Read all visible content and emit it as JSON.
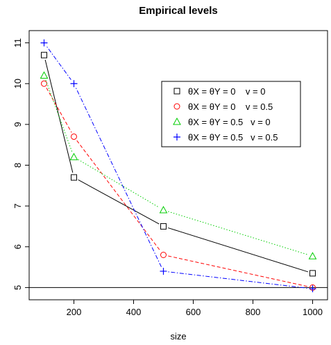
{
  "chart_data": {
    "type": "line",
    "title": "Empirical levels",
    "xlabel": "size",
    "ylabel": "",
    "x": [
      100,
      200,
      500,
      1000
    ],
    "xlim": [
      50,
      1050
    ],
    "ylim": [
      4.7,
      11.3
    ],
    "xticks": [
      200,
      400,
      600,
      800,
      1000
    ],
    "yticks": [
      5,
      6,
      7,
      8,
      9,
      10,
      11
    ],
    "reference_line_y": 5,
    "grid": false,
    "legend_position": "right",
    "series": [
      {
        "name": "θX = θY = 0    v = 0",
        "marker": "square",
        "line": "solid",
        "color": "#000000",
        "values": [
          10.7,
          7.7,
          6.5,
          5.35
        ]
      },
      {
        "name": "θX = θY = 0    v = 0.5",
        "marker": "circle",
        "line": "dashed",
        "color": "#ff0000",
        "values": [
          10.0,
          8.7,
          5.8,
          5.0
        ]
      },
      {
        "name": "θX = θY = 0.5   v = 0",
        "marker": "triangle",
        "line": "dotted",
        "color": "#00cd00",
        "values": [
          10.2,
          8.2,
          6.9,
          5.77
        ]
      },
      {
        "name": "θX = θY = 0.5   v = 0.5",
        "marker": "plus",
        "line": "dotdash",
        "color": "#0000ff",
        "values": [
          11.0,
          10.0,
          5.4,
          4.97
        ]
      }
    ]
  }
}
